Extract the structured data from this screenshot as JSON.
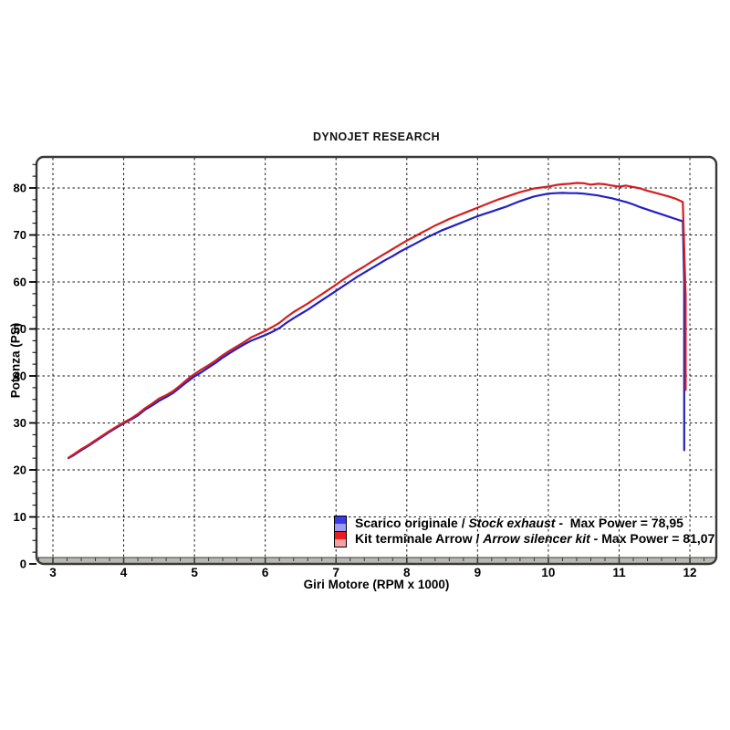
{
  "title": "DYNOJET RESEARCH",
  "colors": {
    "background": "#ffffff",
    "stock_curve": "#2121c4",
    "arrow_curve": "#d41e1e",
    "gridline": "#151515",
    "frame": "#3a3a3a",
    "axis_bar": "#bab9b1",
    "text": "#000000"
  },
  "chart_data": {
    "type": "line",
    "title": "DYNOJET RESEARCH",
    "xlabel": "Giri Motore (RPM x 1000)",
    "ylabel": "Potenza (PS)",
    "xlim": [
      3,
      12
    ],
    "ylim": [
      0,
      86
    ],
    "x_major_ticks": [
      3,
      4,
      5,
      6,
      7,
      8,
      9,
      10,
      11,
      12
    ],
    "y_major_ticks": [
      0,
      10,
      20,
      30,
      40,
      50,
      60,
      70,
      80
    ],
    "x_minor_step": 0.2,
    "y_minor_step": 2.5,
    "grid": "dashed black lines at every major tick, both axes",
    "legend_position": "inside bottom-right",
    "series": [
      {
        "name": "Scarico originale / Stock exhaust",
        "color": "#2121c4",
        "max_power": "78,95",
        "points": [
          [
            3.22,
            22.5
          ],
          [
            3.3,
            23.2
          ],
          [
            3.4,
            24.2
          ],
          [
            3.5,
            25.1
          ],
          [
            3.6,
            26.1
          ],
          [
            3.7,
            27.1
          ],
          [
            3.8,
            28.1
          ],
          [
            3.9,
            29.0
          ],
          [
            4.0,
            29.9
          ],
          [
            4.1,
            30.7
          ],
          [
            4.2,
            31.6
          ],
          [
            4.3,
            32.8
          ],
          [
            4.4,
            33.7
          ],
          [
            4.5,
            34.7
          ],
          [
            4.6,
            35.5
          ],
          [
            4.7,
            36.4
          ],
          [
            4.8,
            37.6
          ],
          [
            4.9,
            38.8
          ],
          [
            5.0,
            39.9
          ],
          [
            5.1,
            40.8
          ],
          [
            5.2,
            41.8
          ],
          [
            5.3,
            42.8
          ],
          [
            5.4,
            43.9
          ],
          [
            5.5,
            44.9
          ],
          [
            5.6,
            45.8
          ],
          [
            5.7,
            46.7
          ],
          [
            5.8,
            47.5
          ],
          [
            5.9,
            48.1
          ],
          [
            6.0,
            48.7
          ],
          [
            6.1,
            49.4
          ],
          [
            6.2,
            50.2
          ],
          [
            6.3,
            51.3
          ],
          [
            6.4,
            52.3
          ],
          [
            6.5,
            53.2
          ],
          [
            6.6,
            54.1
          ],
          [
            6.7,
            55.1
          ],
          [
            6.8,
            56.1
          ],
          [
            6.9,
            57.1
          ],
          [
            7.0,
            58.1
          ],
          [
            7.1,
            59.1
          ],
          [
            7.2,
            60.1
          ],
          [
            7.3,
            61.1
          ],
          [
            7.4,
            62.0
          ],
          [
            7.5,
            62.9
          ],
          [
            7.6,
            63.8
          ],
          [
            7.7,
            64.7
          ],
          [
            7.8,
            65.5
          ],
          [
            7.9,
            66.4
          ],
          [
            8.0,
            67.2
          ],
          [
            8.1,
            68.0
          ],
          [
            8.2,
            68.8
          ],
          [
            8.3,
            69.6
          ],
          [
            8.4,
            70.3
          ],
          [
            8.5,
            71.0
          ],
          [
            8.6,
            71.6
          ],
          [
            8.7,
            72.2
          ],
          [
            8.8,
            72.8
          ],
          [
            8.9,
            73.4
          ],
          [
            9.0,
            74.0
          ],
          [
            9.1,
            74.5
          ],
          [
            9.2,
            75.0
          ],
          [
            9.3,
            75.5
          ],
          [
            9.4,
            76.0
          ],
          [
            9.5,
            76.6
          ],
          [
            9.6,
            77.2
          ],
          [
            9.7,
            77.7
          ],
          [
            9.8,
            78.2
          ],
          [
            9.9,
            78.5
          ],
          [
            10.0,
            78.8
          ],
          [
            10.1,
            78.9
          ],
          [
            10.2,
            78.95
          ],
          [
            10.3,
            78.9
          ],
          [
            10.4,
            78.9
          ],
          [
            10.5,
            78.8
          ],
          [
            10.6,
            78.6
          ],
          [
            10.7,
            78.4
          ],
          [
            10.8,
            78.1
          ],
          [
            10.9,
            77.8
          ],
          [
            11.0,
            77.4
          ],
          [
            11.1,
            77.0
          ],
          [
            11.2,
            76.5
          ],
          [
            11.3,
            75.9
          ],
          [
            11.4,
            75.4
          ],
          [
            11.5,
            74.9
          ],
          [
            11.6,
            74.4
          ],
          [
            11.7,
            73.9
          ],
          [
            11.8,
            73.4
          ],
          [
            11.9,
            72.9
          ],
          [
            11.92,
            60.0
          ],
          [
            11.92,
            24.2
          ]
        ]
      },
      {
        "name": "Kit terminale Arrow / Arrow silencer kit",
        "color": "#d41e1e",
        "max_power": "81,07",
        "points": [
          [
            3.22,
            22.6
          ],
          [
            3.3,
            23.4
          ],
          [
            3.4,
            24.4
          ],
          [
            3.5,
            25.3
          ],
          [
            3.6,
            26.3
          ],
          [
            3.7,
            27.3
          ],
          [
            3.8,
            28.3
          ],
          [
            3.9,
            29.2
          ],
          [
            4.0,
            30.1
          ],
          [
            4.1,
            30.9
          ],
          [
            4.2,
            31.9
          ],
          [
            4.3,
            33.1
          ],
          [
            4.4,
            34.1
          ],
          [
            4.5,
            35.2
          ],
          [
            4.6,
            35.9
          ],
          [
            4.7,
            36.8
          ],
          [
            4.8,
            38.0
          ],
          [
            4.9,
            39.3
          ],
          [
            5.0,
            40.4
          ],
          [
            5.1,
            41.4
          ],
          [
            5.2,
            42.3
          ],
          [
            5.3,
            43.3
          ],
          [
            5.4,
            44.4
          ],
          [
            5.5,
            45.4
          ],
          [
            5.6,
            46.3
          ],
          [
            5.7,
            47.2
          ],
          [
            5.8,
            48.2
          ],
          [
            5.9,
            48.9
          ],
          [
            6.0,
            49.6
          ],
          [
            6.1,
            50.4
          ],
          [
            6.2,
            51.3
          ],
          [
            6.3,
            52.5
          ],
          [
            6.4,
            53.6
          ],
          [
            6.5,
            54.5
          ],
          [
            6.6,
            55.4
          ],
          [
            6.7,
            56.4
          ],
          [
            6.8,
            57.4
          ],
          [
            6.9,
            58.4
          ],
          [
            7.0,
            59.4
          ],
          [
            7.1,
            60.5
          ],
          [
            7.2,
            61.5
          ],
          [
            7.3,
            62.4
          ],
          [
            7.4,
            63.3
          ],
          [
            7.5,
            64.3
          ],
          [
            7.6,
            65.2
          ],
          [
            7.7,
            66.1
          ],
          [
            7.8,
            67.0
          ],
          [
            7.9,
            67.9
          ],
          [
            8.0,
            68.8
          ],
          [
            8.1,
            69.6
          ],
          [
            8.2,
            70.4
          ],
          [
            8.3,
            71.2
          ],
          [
            8.4,
            72.0
          ],
          [
            8.5,
            72.7
          ],
          [
            8.6,
            73.4
          ],
          [
            8.7,
            74.0
          ],
          [
            8.8,
            74.6
          ],
          [
            8.9,
            75.2
          ],
          [
            9.0,
            75.8
          ],
          [
            9.1,
            76.4
          ],
          [
            9.2,
            77.0
          ],
          [
            9.3,
            77.6
          ],
          [
            9.4,
            78.1
          ],
          [
            9.5,
            78.6
          ],
          [
            9.6,
            79.1
          ],
          [
            9.7,
            79.5
          ],
          [
            9.8,
            79.9
          ],
          [
            9.9,
            80.1
          ],
          [
            10.0,
            80.3
          ],
          [
            10.1,
            80.6
          ],
          [
            10.2,
            80.8
          ],
          [
            10.3,
            80.9
          ],
          [
            10.4,
            81.07
          ],
          [
            10.5,
            81.0
          ],
          [
            10.6,
            80.7
          ],
          [
            10.7,
            80.9
          ],
          [
            10.8,
            80.8
          ],
          [
            10.9,
            80.5
          ],
          [
            11.0,
            80.3
          ],
          [
            11.1,
            80.5
          ],
          [
            11.2,
            80.2
          ],
          [
            11.3,
            79.9
          ],
          [
            11.4,
            79.4
          ],
          [
            11.5,
            79.0
          ],
          [
            11.6,
            78.6
          ],
          [
            11.7,
            78.2
          ],
          [
            11.8,
            77.7
          ],
          [
            11.9,
            77.0
          ],
          [
            11.94,
            57.0
          ],
          [
            11.94,
            37.0
          ]
        ]
      }
    ]
  },
  "legend": {
    "entries": [
      {
        "prefix": "Scarico originale / ",
        "italic": "Stock exhaust",
        "sep": " -  ",
        "max_label": "Max Power = ",
        "max_value": "78,95",
        "swatch_top": "#3a3ae8",
        "swatch_bottom": "#9d9df2"
      },
      {
        "prefix": "Kit terminale Arrow / ",
        "italic": "Arrow silencer kit",
        "sep": " - ",
        "max_label": "Max Power = ",
        "max_value": "81,07",
        "swatch_top": "#ee1c1c",
        "swatch_bottom": "#f7a0a0"
      }
    ]
  }
}
